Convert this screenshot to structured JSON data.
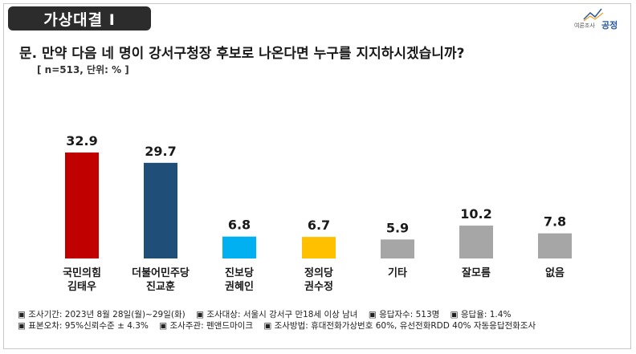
{
  "header": {
    "badge": "가상대결 Ⅰ",
    "logo_text": "여론조사",
    "logo_brand": "공정"
  },
  "question": "문. 만약 다음 네 명이 강서구청장 후보로 나온다면 누구를 지지하시겠습니까?",
  "sample_note": "[ n=513, 단위: % ]",
  "chart_data": {
    "type": "bar",
    "categories": [
      [
        "국민의힘",
        "김태우"
      ],
      [
        "더불어민주당",
        "진교훈"
      ],
      [
        "진보당",
        "권혜인"
      ],
      [
        "정의당",
        "권수정"
      ],
      [
        "기타"
      ],
      [
        "잘모름"
      ],
      [
        "없음"
      ]
    ],
    "values": [
      32.9,
      29.7,
      6.8,
      6.7,
      5.9,
      10.2,
      7.8
    ],
    "value_labels": [
      "32.9",
      "29.7",
      "6.8",
      "6.7",
      "5.9",
      "10.2",
      "7.8"
    ],
    "colors": [
      "#c00000",
      "#1f4e79",
      "#00b0f0",
      "#ffc000",
      "#a6a6a6",
      "#a6a6a6",
      "#a6a6a6"
    ],
    "ylim": [
      0,
      35
    ],
    "grid": false,
    "legend": "none"
  },
  "notes": [
    [
      "▣ 조사기간: 2023년 8월 28일(월)~29일(화)",
      "▣ 조사대상: 서울시 강서구 만18세 이상 남녀",
      "▣ 응답자수: 513명",
      "▣ 응답율: 1.4%"
    ],
    [
      "▣ 표본오차: 95%신뢰수준 ± 4.3%",
      "▣ 조사주관: 펜앤드마이크",
      "▣ 조사방법: 휴대전화가상번호 60%, 유선전화RDD 40% 자동응답전화조사"
    ]
  ],
  "colors": {
    "badge_bg": "#2c2c2c",
    "logo_accent": "#2b5a9a"
  }
}
